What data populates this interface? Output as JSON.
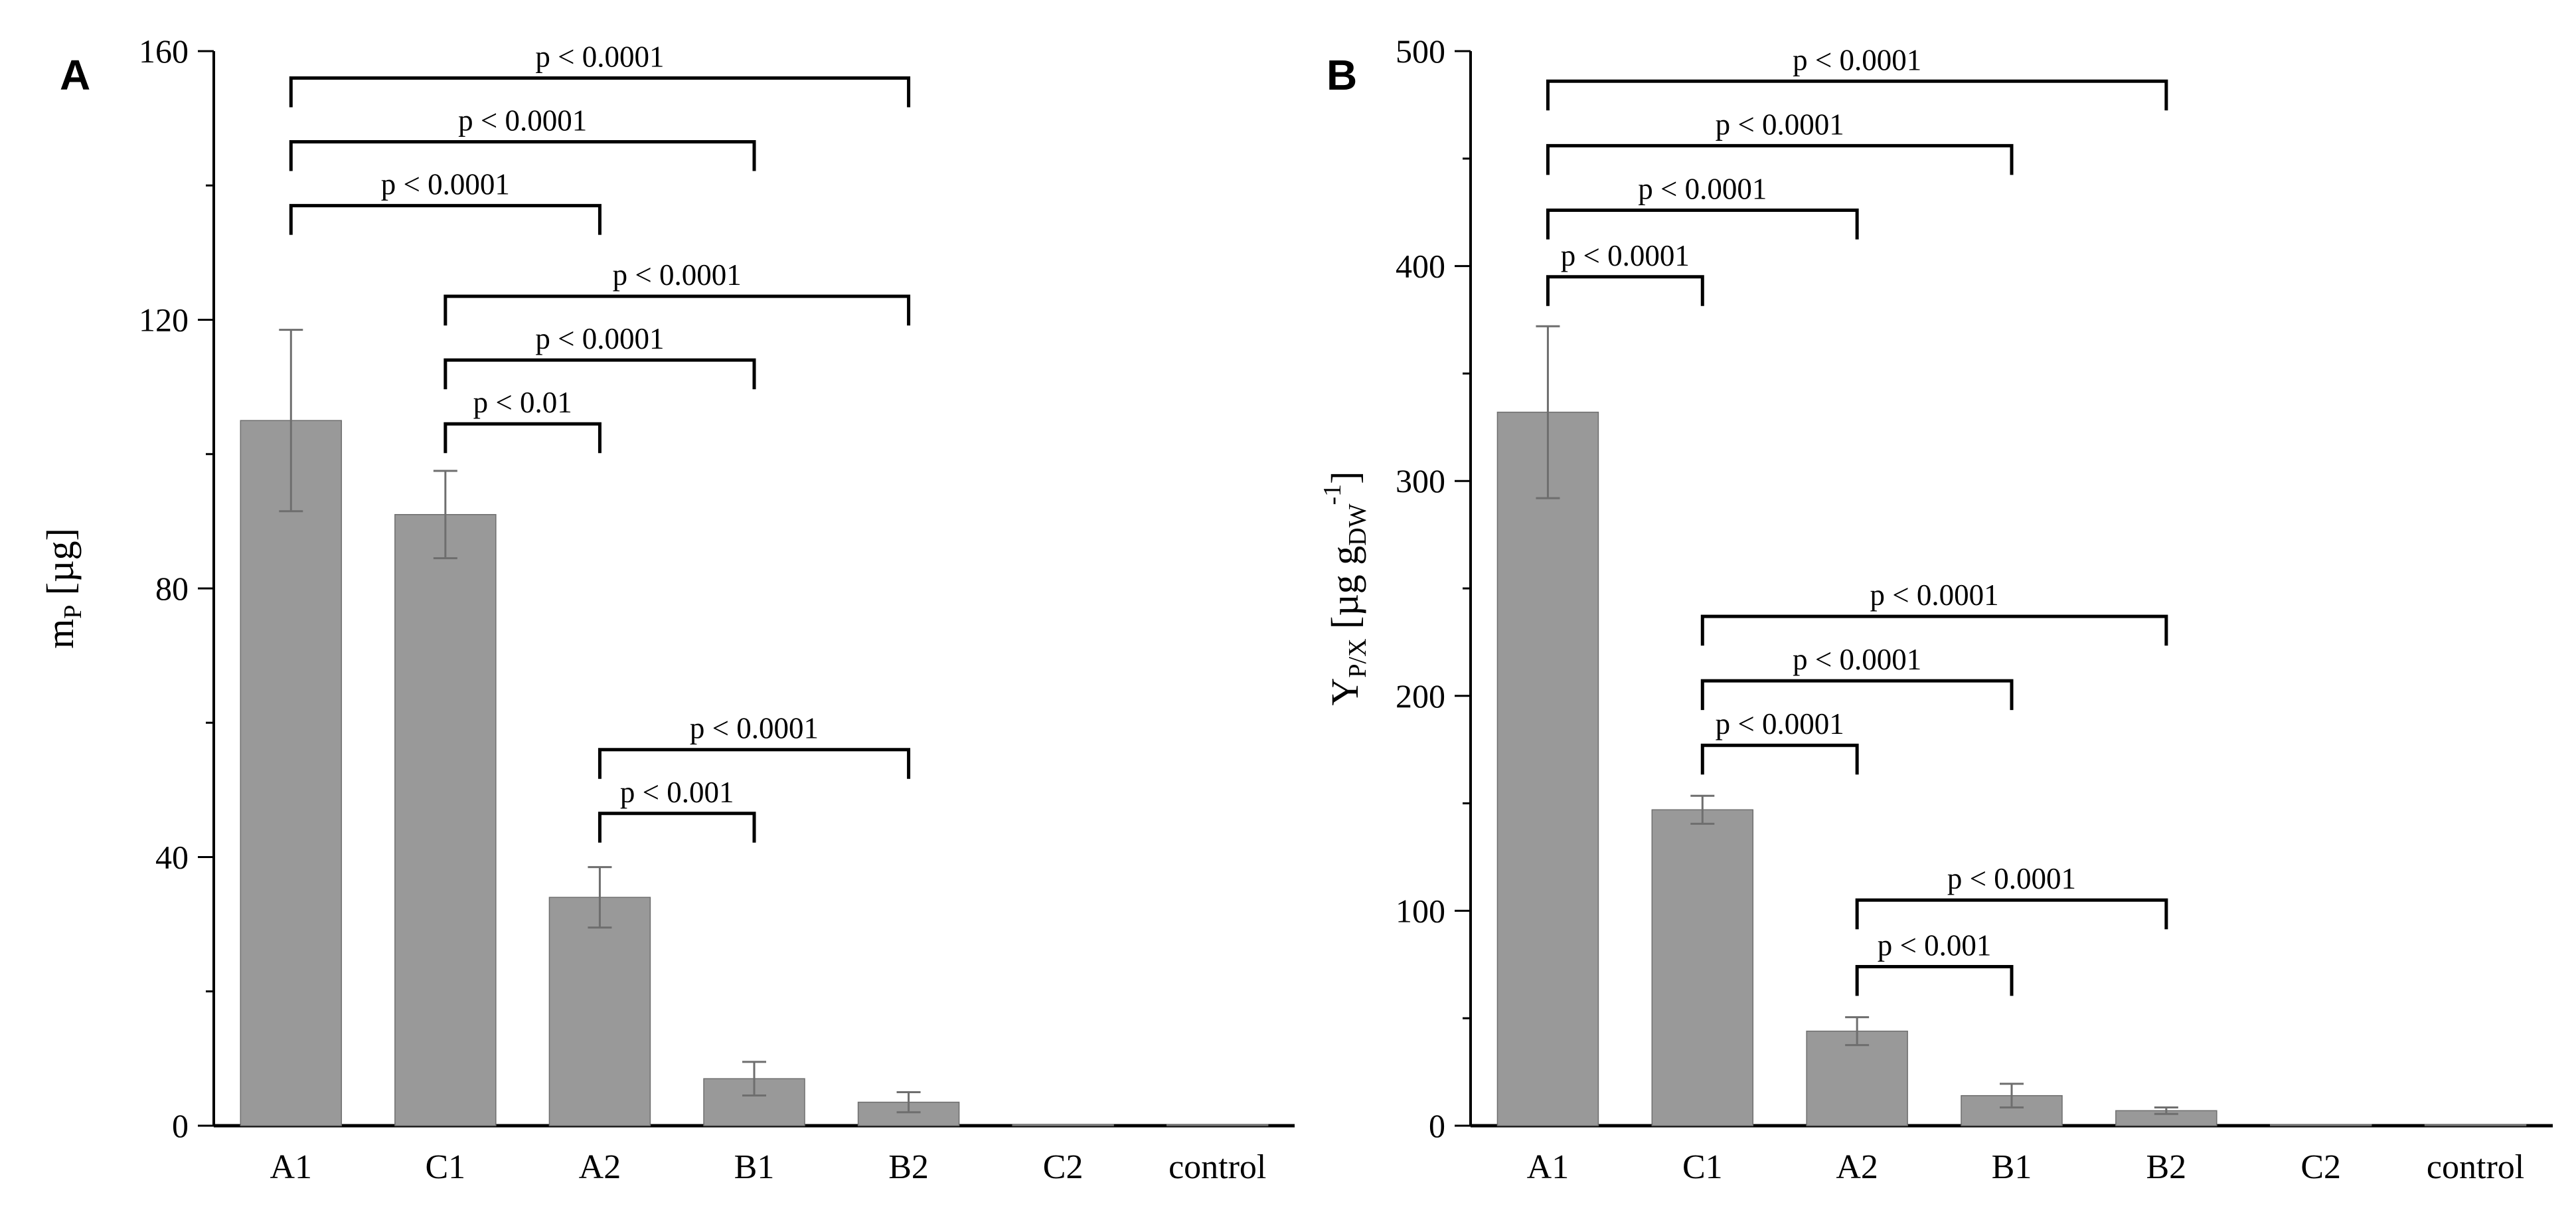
{
  "colors": {
    "bar": "#999999",
    "bar_edge": "#6e6e6e",
    "error": "#6e6e6e",
    "axis": "#000000",
    "bracket": "#000000"
  },
  "chart_data": [
    {
      "panel": "A",
      "type": "bar",
      "categories": [
        "A1",
        "C1",
        "A2",
        "B1",
        "B2",
        "C2",
        "control"
      ],
      "values": [
        105,
        91,
        34,
        7,
        3.5,
        0.2,
        0
      ],
      "errors": [
        13.5,
        6.5,
        4.5,
        2.5,
        1.5,
        0,
        0
      ],
      "ylabel_main": "m",
      "ylabel_sub": "P",
      "ylabel_unit": " [µg]",
      "ylim": [
        0,
        160
      ],
      "yticks": [
        "0",
        "40",
        "80",
        "120",
        "160"
      ],
      "ytick_values": [
        0,
        40,
        80,
        120,
        160
      ],
      "minor_step": 20,
      "brackets": [
        {
          "from": 0,
          "to": 4,
          "label": "p < 0.0001",
          "level": 156
        },
        {
          "from": 0,
          "to": 3,
          "label": "p < 0.0001",
          "level": 146.5
        },
        {
          "from": 0,
          "to": 2,
          "label": "p < 0.0001",
          "level": 137
        },
        {
          "from": 1,
          "to": 4,
          "label": "p < 0.0001",
          "level": 123.5
        },
        {
          "from": 1,
          "to": 3,
          "label": "p < 0.0001",
          "level": 114
        },
        {
          "from": 1,
          "to": 2,
          "label": "p < 0.01",
          "level": 104.5
        },
        {
          "from": 2,
          "to": 4,
          "label": "p < 0.0001",
          "level": 56
        },
        {
          "from": 2,
          "to": 3,
          "label": "p < 0.001",
          "level": 46.5
        }
      ]
    },
    {
      "panel": "B",
      "type": "bar",
      "categories": [
        "A1",
        "C1",
        "A2",
        "B1",
        "B2",
        "C2",
        "control"
      ],
      "values": [
        332,
        147,
        44,
        14,
        7,
        0.5,
        0.3
      ],
      "errors": [
        40,
        6.5,
        6.5,
        5.5,
        1.5,
        0,
        0
      ],
      "ylabel_main": "Y",
      "ylabel_sub": "P/X",
      "ylabel_unit": " [µg g",
      "ylabel_sub2": "DW",
      "ylabel_sup": "-1",
      "ylabel_close": "]",
      "ylim": [
        0,
        500
      ],
      "yticks": [
        "0",
        "100",
        "200",
        "300",
        "400",
        "500"
      ],
      "ytick_values": [
        0,
        100,
        200,
        300,
        400,
        500
      ],
      "minor_step": 50,
      "brackets": [
        {
          "from": 0,
          "to": 4,
          "label": "p < 0.0001",
          "level": 486
        },
        {
          "from": 0,
          "to": 3,
          "label": "p < 0.0001",
          "level": 456
        },
        {
          "from": 0,
          "to": 2,
          "label": "p < 0.0001",
          "level": 426
        },
        {
          "from": 0,
          "to": 1,
          "label": "p < 0.0001",
          "level": 395
        },
        {
          "from": 1,
          "to": 4,
          "label": "p < 0.0001",
          "level": 237
        },
        {
          "from": 1,
          "to": 3,
          "label": "p < 0.0001",
          "level": 207
        },
        {
          "from": 1,
          "to": 2,
          "label": "p < 0.0001",
          "level": 177
        },
        {
          "from": 2,
          "to": 4,
          "label": "p < 0.0001",
          "level": 105
        },
        {
          "from": 2,
          "to": 3,
          "label": "p < 0.001",
          "level": 74
        }
      ]
    }
  ]
}
